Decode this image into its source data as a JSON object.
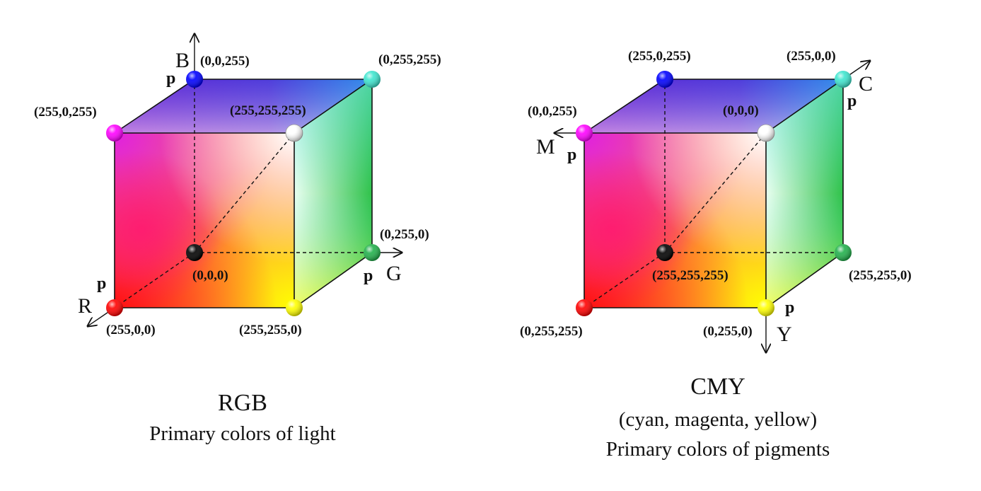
{
  "rgb": {
    "title": "RGB",
    "subtitle": "Primary colors of light",
    "axes": {
      "x": "R",
      "y": "G",
      "z": "B"
    },
    "p_label": "p",
    "vertices": {
      "origin": {
        "label": "(0,0,0)",
        "color": "#000000"
      },
      "x": {
        "label": "(255,0,0)",
        "color": "#ff0000"
      },
      "y": {
        "label": "(0,255,0)",
        "color": "#22b14c"
      },
      "z": {
        "label": "(0,0,255)",
        "color": "#0000ff"
      },
      "xy": {
        "label": "(255,255,0)",
        "color": "#ffff00"
      },
      "xz": {
        "label": "(255,0,255)",
        "color": "#ff00ff"
      },
      "yz": {
        "label": "(0,255,255)",
        "color": "#3ee6cf"
      },
      "xyz": {
        "label": "(255,255,255)",
        "color": "#ffffff"
      }
    }
  },
  "cmy": {
    "title": "CMY",
    "subtitle": "(cyan, magenta, yellow)",
    "subtitle2": "Primary colors of pigments",
    "axes": {
      "c": "C",
      "m": "M",
      "y": "Y"
    },
    "p_label": "p",
    "vertices": {
      "back_bottom_left": {
        "label": "(255,255,255)",
        "color": "#000000"
      },
      "front_bottom_left": {
        "label": "(0,255,255)",
        "color": "#ff0000"
      },
      "back_bottom_right": {
        "label": "(255,255,0)",
        "color": "#22b14c"
      },
      "back_top_left": {
        "label": "(255,0,255)",
        "color": "#0000ff"
      },
      "front_bottom_right": {
        "label": "(0,255,0)",
        "color": "#ffff00"
      },
      "front_top_left": {
        "label": "(0,0,255)",
        "color": "#ff00ff"
      },
      "back_top_right": {
        "label": "(255,0,0)",
        "color": "#3ee6cf"
      },
      "front_top_right": {
        "label": "(0,0,0)",
        "color": "#ffffff"
      }
    }
  }
}
